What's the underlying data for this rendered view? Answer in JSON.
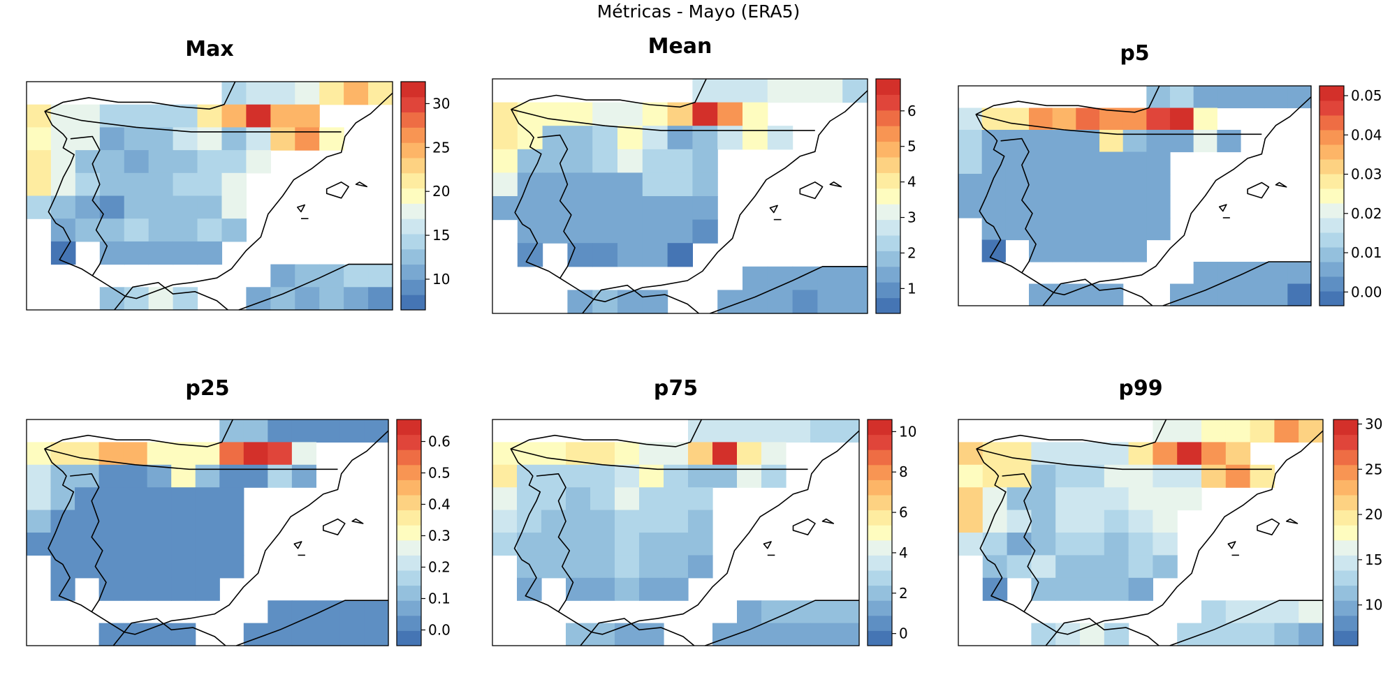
{
  "suptitle": "Métricas - Mayo (ERA5)",
  "colormap": [
    "#4575b4",
    "#5e8fc3",
    "#79a8d1",
    "#94c0dd",
    "#b1d6e9",
    "#cde6ef",
    "#e8f4ec",
    "#fefcbf",
    "#feeca0",
    "#fdd282",
    "#fdb567",
    "#f89553",
    "#ee6d44",
    "#e0453a",
    "#d3302a"
  ],
  "chart_data": [
    {
      "type": "heatmap",
      "title": "Max",
      "colorbar": {
        "min": 6.5,
        "max": 32.5,
        "ticks": [
          10,
          15,
          20,
          25,
          30
        ],
        "tick_labels": [
          "10",
          "15",
          "20",
          "25",
          "30"
        ]
      },
      "grid": [
        [
          null,
          null,
          null,
          null,
          null,
          null,
          null,
          null,
          15,
          16,
          16,
          18,
          21,
          25,
          21
        ],
        [
          22,
          17,
          17,
          14,
          14,
          14,
          14,
          21,
          25,
          32,
          24,
          24,
          null,
          null,
          null
        ],
        [
          19,
          17,
          18,
          11,
          12,
          12,
          16,
          18,
          12,
          16,
          23,
          26,
          20,
          null,
          null
        ],
        [
          22,
          17,
          12,
          12,
          11,
          13,
          12,
          14,
          14,
          17,
          null,
          null,
          null,
          null,
          null
        ],
        [
          22,
          18,
          14,
          12,
          13,
          13,
          14,
          15,
          17,
          null,
          null,
          null,
          null,
          null,
          null
        ],
        [
          15,
          13,
          11,
          9,
          12,
          12,
          12,
          12,
          17,
          null,
          null,
          null,
          null,
          null,
          null
        ],
        [
          null,
          10,
          13,
          13,
          14,
          12,
          12,
          14,
          13,
          null,
          null,
          null,
          null,
          null,
          null
        ],
        [
          null,
          8,
          null,
          11,
          11,
          11,
          11,
          10,
          null,
          null,
          null,
          null,
          null,
          null,
          null
        ],
        [
          null,
          null,
          null,
          null,
          null,
          null,
          null,
          null,
          null,
          null,
          11,
          12,
          13,
          14,
          15
        ],
        [
          null,
          null,
          null,
          12,
          15,
          17,
          14,
          null,
          null,
          11,
          12,
          11,
          12,
          10,
          9
        ]
      ]
    },
    {
      "type": "heatmap",
      "title": "Mean",
      "colorbar": {
        "min": 0.3,
        "max": 6.9,
        "ticks": [
          1,
          2,
          3,
          4,
          5,
          6
        ],
        "tick_labels": [
          "1",
          "2",
          "3",
          "4",
          "5",
          "6"
        ]
      },
      "grid": [
        [
          null,
          null,
          null,
          null,
          null,
          null,
          null,
          null,
          2.5,
          2.5,
          2.8,
          3.0,
          3.0,
          3.0,
          2.3
        ],
        [
          4.0,
          3.5,
          3.8,
          3.8,
          3.2,
          3.2,
          3.8,
          4.5,
          6.8,
          5.2,
          3.8,
          null,
          null,
          null,
          null
        ],
        [
          4.0,
          3.5,
          1.8,
          1.8,
          2.2,
          3.5,
          2.5,
          1.5,
          2.0,
          2.5,
          3.5,
          2.5,
          null,
          null,
          null
        ],
        [
          3.8,
          1.8,
          1.8,
          1.8,
          2.2,
          3.0,
          2.2,
          2.2,
          2.0,
          null,
          null,
          null,
          null,
          null,
          null
        ],
        [
          3.0,
          1.5,
          1.5,
          1.2,
          1.5,
          1.5,
          2.2,
          2.2,
          1.8,
          null,
          null,
          null,
          null,
          null,
          null
        ],
        [
          1.5,
          1.5,
          1.2,
          1.2,
          1.5,
          1.2,
          1.5,
          1.5,
          1.5,
          null,
          null,
          null,
          null,
          null,
          null
        ],
        [
          null,
          1.2,
          1.2,
          1.2,
          1.2,
          1.5,
          1.5,
          1.5,
          1.0,
          null,
          null,
          null,
          null,
          null,
          null
        ],
        [
          null,
          0.8,
          null,
          1.0,
          1.0,
          1.2,
          1.2,
          0.6,
          null,
          null,
          null,
          null,
          null,
          null,
          null
        ],
        [
          null,
          null,
          null,
          null,
          null,
          null,
          null,
          null,
          null,
          null,
          1.5,
          1.5,
          1.2,
          1.2,
          1.5
        ],
        [
          null,
          null,
          null,
          1.2,
          1.8,
          1.5,
          1.5,
          null,
          null,
          1.2,
          1.2,
          1.2,
          1.0,
          1.2,
          1.2
        ]
      ]
    },
    {
      "type": "heatmap",
      "title": "p5",
      "colorbar": {
        "min": -0.0035,
        "max": 0.0525,
        "ticks": [
          0.0,
          0.01,
          0.02,
          0.03,
          0.04,
          0.05
        ],
        "tick_labels": [
          "0.00",
          "0.01",
          "0.02",
          "0.03",
          "0.04",
          "0.05"
        ]
      },
      "grid": [
        [
          null,
          null,
          null,
          null,
          null,
          null,
          null,
          null,
          0.008,
          0.012,
          0.004,
          0.004,
          0.004,
          0.004,
          0.004
        ],
        [
          0.016,
          0.03,
          0.03,
          0.04,
          0.036,
          0.044,
          0.04,
          0.038,
          0.046,
          0.052,
          0.024,
          null,
          null,
          null,
          null
        ],
        [
          0.012,
          0.004,
          0.004,
          0.004,
          0.004,
          0.004,
          0.028,
          0.008,
          0.004,
          0.004,
          0.022,
          0.006,
          null,
          null,
          null
        ],
        [
          0.012,
          0.004,
          0.004,
          0.004,
          0.004,
          0.004,
          0.004,
          0.004,
          0.004,
          null,
          null,
          null,
          null,
          null,
          null
        ],
        [
          0.004,
          0.004,
          0.004,
          0.004,
          0.004,
          0.004,
          0.004,
          0.004,
          0.004,
          null,
          null,
          null,
          null,
          null,
          null
        ],
        [
          0.004,
          0.004,
          0.004,
          0.004,
          0.004,
          0.004,
          0.004,
          0.004,
          0.004,
          null,
          null,
          null,
          null,
          null,
          null
        ],
        [
          null,
          0.004,
          0.004,
          0.004,
          0.004,
          0.004,
          0.004,
          0.004,
          0.004,
          null,
          null,
          null,
          null,
          null,
          null
        ],
        [
          null,
          0.0,
          null,
          0.004,
          0.004,
          0.004,
          0.004,
          0.004,
          null,
          null,
          null,
          null,
          null,
          null,
          null
        ],
        [
          null,
          null,
          null,
          null,
          null,
          null,
          null,
          null,
          null,
          null,
          0.004,
          0.004,
          0.004,
          0.004,
          0.004
        ],
        [
          null,
          null,
          null,
          0.004,
          0.004,
          0.004,
          0.004,
          null,
          null,
          0.004,
          0.004,
          0.004,
          0.004,
          0.004,
          0.0
        ]
      ]
    },
    {
      "type": "heatmap",
      "title": "p25",
      "colorbar": {
        "min": -0.05,
        "max": 0.67,
        "ticks": [
          0.0,
          0.1,
          0.2,
          0.3,
          0.4,
          0.5,
          0.6
        ],
        "tick_labels": [
          "0.0",
          "0.1",
          "0.2",
          "0.3",
          "0.4",
          "0.5",
          "0.6"
        ]
      },
      "grid": [
        [
          null,
          null,
          null,
          null,
          null,
          null,
          null,
          null,
          0.1,
          0.12,
          0.04,
          0.04,
          0.04,
          0.04,
          0.04
        ],
        [
          0.32,
          0.34,
          0.34,
          0.45,
          0.45,
          0.32,
          0.3,
          0.32,
          0.55,
          0.63,
          0.6,
          0.28,
          null,
          null,
          null
        ],
        [
          0.2,
          0.1,
          0.1,
          0.04,
          0.04,
          0.08,
          0.3,
          0.1,
          0.04,
          0.04,
          0.15,
          0.08,
          null,
          null,
          null
        ],
        [
          0.2,
          0.1,
          0.04,
          0.04,
          0.04,
          0.04,
          0.04,
          0.04,
          0.04,
          null,
          null,
          null,
          null,
          null,
          null
        ],
        [
          0.12,
          0.04,
          0.04,
          0.04,
          0.04,
          0.04,
          0.04,
          0.04,
          0.04,
          null,
          null,
          null,
          null,
          null,
          null
        ],
        [
          0.04,
          0.04,
          0.04,
          0.04,
          0.04,
          0.04,
          0.04,
          0.04,
          0.04,
          null,
          null,
          null,
          null,
          null,
          null
        ],
        [
          null,
          0.04,
          0.04,
          0.04,
          0.04,
          0.04,
          0.04,
          0.04,
          0.0,
          null,
          null,
          null,
          null,
          null,
          null
        ],
        [
          null,
          0.04,
          null,
          0.04,
          0.04,
          0.04,
          0.04,
          0.0,
          null,
          null,
          null,
          null,
          null,
          null,
          null
        ],
        [
          null,
          null,
          null,
          null,
          null,
          null,
          null,
          null,
          null,
          null,
          0.04,
          0.04,
          0.04,
          0.04,
          0.04
        ],
        [
          null,
          null,
          null,
          0.04,
          0.04,
          0.04,
          0.04,
          null,
          null,
          0.04,
          0.04,
          0.04,
          0.04,
          0.04,
          0.0
        ]
      ]
    },
    {
      "type": "heatmap",
      "title": "p75",
      "colorbar": {
        "min": -0.6,
        "max": 10.6,
        "ticks": [
          0,
          2,
          4,
          6,
          8,
          10
        ],
        "tick_labels": [
          "0",
          "2",
          "4",
          "6",
          "8",
          "10"
        ]
      },
      "grid": [
        [
          null,
          null,
          null,
          null,
          null,
          null,
          null,
          null,
          3.5,
          3.5,
          3.5,
          3.5,
          3.5,
          3.0,
          2.5
        ],
        [
          5.0,
          5.0,
          5.0,
          5.5,
          6.0,
          5.0,
          4.5,
          4.0,
          6.5,
          10.0,
          6.0,
          4.5,
          null,
          null,
          null
        ],
        [
          5.5,
          3.0,
          2.5,
          2.5,
          2.5,
          3.5,
          4.8,
          3.0,
          2.0,
          2.0,
          4.0,
          2.5,
          null,
          null,
          null
        ],
        [
          4.5,
          2.5,
          2.5,
          2.0,
          2.5,
          4.0,
          3.0,
          3.0,
          2.5,
          null,
          null,
          null,
          null,
          null,
          null
        ],
        [
          3.5,
          2.5,
          2.0,
          2.0,
          2.0,
          2.5,
          3.0,
          3.0,
          2.0,
          null,
          null,
          null,
          null,
          null,
          null
        ],
        [
          2.5,
          2.0,
          2.0,
          2.0,
          2.0,
          2.5,
          2.0,
          2.0,
          2.0,
          null,
          null,
          null,
          null,
          null,
          null
        ],
        [
          null,
          2.0,
          2.0,
          2.0,
          2.0,
          2.5,
          2.0,
          2.0,
          1.5,
          null,
          null,
          null,
          null,
          null,
          null
        ],
        [
          null,
          1.5,
          null,
          1.5,
          1.5,
          2.0,
          1.5,
          1.0,
          null,
          null,
          null,
          null,
          null,
          null,
          null
        ],
        [
          null,
          null,
          null,
          null,
          null,
          null,
          null,
          null,
          null,
          null,
          1.5,
          2.0,
          2.0,
          2.0,
          2.0
        ],
        [
          null,
          null,
          null,
          2.0,
          2.0,
          1.5,
          1.5,
          null,
          null,
          1.5,
          1.5,
          1.5,
          1.5,
          1.0,
          1.5
        ]
      ]
    },
    {
      "type": "heatmap",
      "title": "p99",
      "colorbar": {
        "min": 5.5,
        "max": 30.5,
        "ticks": [
          10,
          15,
          20,
          25,
          30
        ],
        "tick_labels": [
          "10",
          "15",
          "20",
          "25",
          "30"
        ]
      },
      "grid": [
        [
          null,
          null,
          null,
          null,
          null,
          null,
          null,
          null,
          16,
          17,
          18,
          18,
          20,
          24,
          21
        ],
        [
          22,
          19,
          19,
          15,
          14,
          14,
          14,
          20,
          25,
          30,
          24,
          22,
          null,
          null,
          null
        ],
        [
          18,
          19,
          19,
          12,
          13,
          13,
          16,
          16,
          14,
          14,
          22,
          24,
          19,
          null,
          null
        ],
        [
          21,
          17,
          12,
          12,
          15,
          14,
          14,
          17,
          16,
          16,
          null,
          null,
          null,
          null,
          null
        ],
        [
          21,
          17,
          15,
          11,
          14,
          14,
          13,
          14,
          17,
          null,
          null,
          null,
          null,
          null,
          null
        ],
        [
          14,
          13,
          10,
          12,
          13,
          13,
          12,
          13,
          15,
          null,
          null,
          null,
          null,
          null,
          null
        ],
        [
          null,
          12,
          13,
          14,
          12,
          12,
          12,
          13,
          11,
          null,
          null,
          null,
          null,
          null,
          null
        ],
        [
          null,
          8,
          null,
          11,
          11,
          12,
          11,
          10,
          null,
          null,
          null,
          null,
          null,
          null,
          null
        ],
        [
          null,
          null,
          null,
          null,
          null,
          null,
          null,
          null,
          null,
          null,
          13,
          14,
          14,
          15,
          16
        ],
        [
          null,
          null,
          null,
          13,
          15,
          17,
          13,
          null,
          null,
          13,
          13,
          13,
          13,
          11,
          9
        ]
      ]
    }
  ]
}
